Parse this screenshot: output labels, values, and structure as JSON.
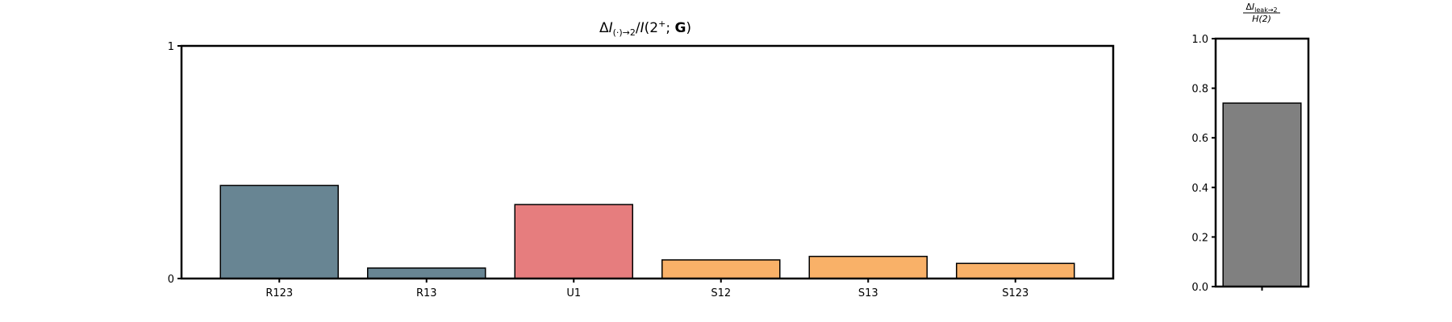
{
  "chart_data": [
    {
      "type": "bar",
      "title_parts": {
        "delta": "Δ",
        "i1": "I",
        "sub": "(·)→2",
        "slash": "/",
        "i2": "I",
        "open": "(2",
        "sup": "+",
        "semi": "; ",
        "bold": "G",
        "close": ")"
      },
      "categories": [
        "R123",
        "R13",
        "U1",
        "S12",
        "S13",
        "S123"
      ],
      "values": [
        0.4,
        0.045,
        0.318,
        0.08,
        0.095,
        0.065
      ],
      "colors": [
        "#688593",
        "#688593",
        "#e67d7e",
        "#f9b168",
        "#f9b168",
        "#f9b168"
      ],
      "ylim": [
        0,
        1
      ],
      "yticks": [
        "0",
        "1"
      ],
      "xlabel": "",
      "ylabel": "",
      "grid": false,
      "legend": false
    },
    {
      "type": "bar",
      "title_parts": {
        "num_delta": "Δ",
        "num_i": "I",
        "num_sub": "leak→2",
        "den": "H(2)"
      },
      "categories": [
        ""
      ],
      "values": [
        0.74
      ],
      "colors": [
        "#808080"
      ],
      "ylim": [
        0,
        1
      ],
      "yticks": [
        "0.0",
        "0.2",
        "0.4",
        "0.6",
        "0.8",
        "1.0"
      ],
      "xlabel": "",
      "ylabel": "",
      "grid": false,
      "legend": false
    }
  ]
}
